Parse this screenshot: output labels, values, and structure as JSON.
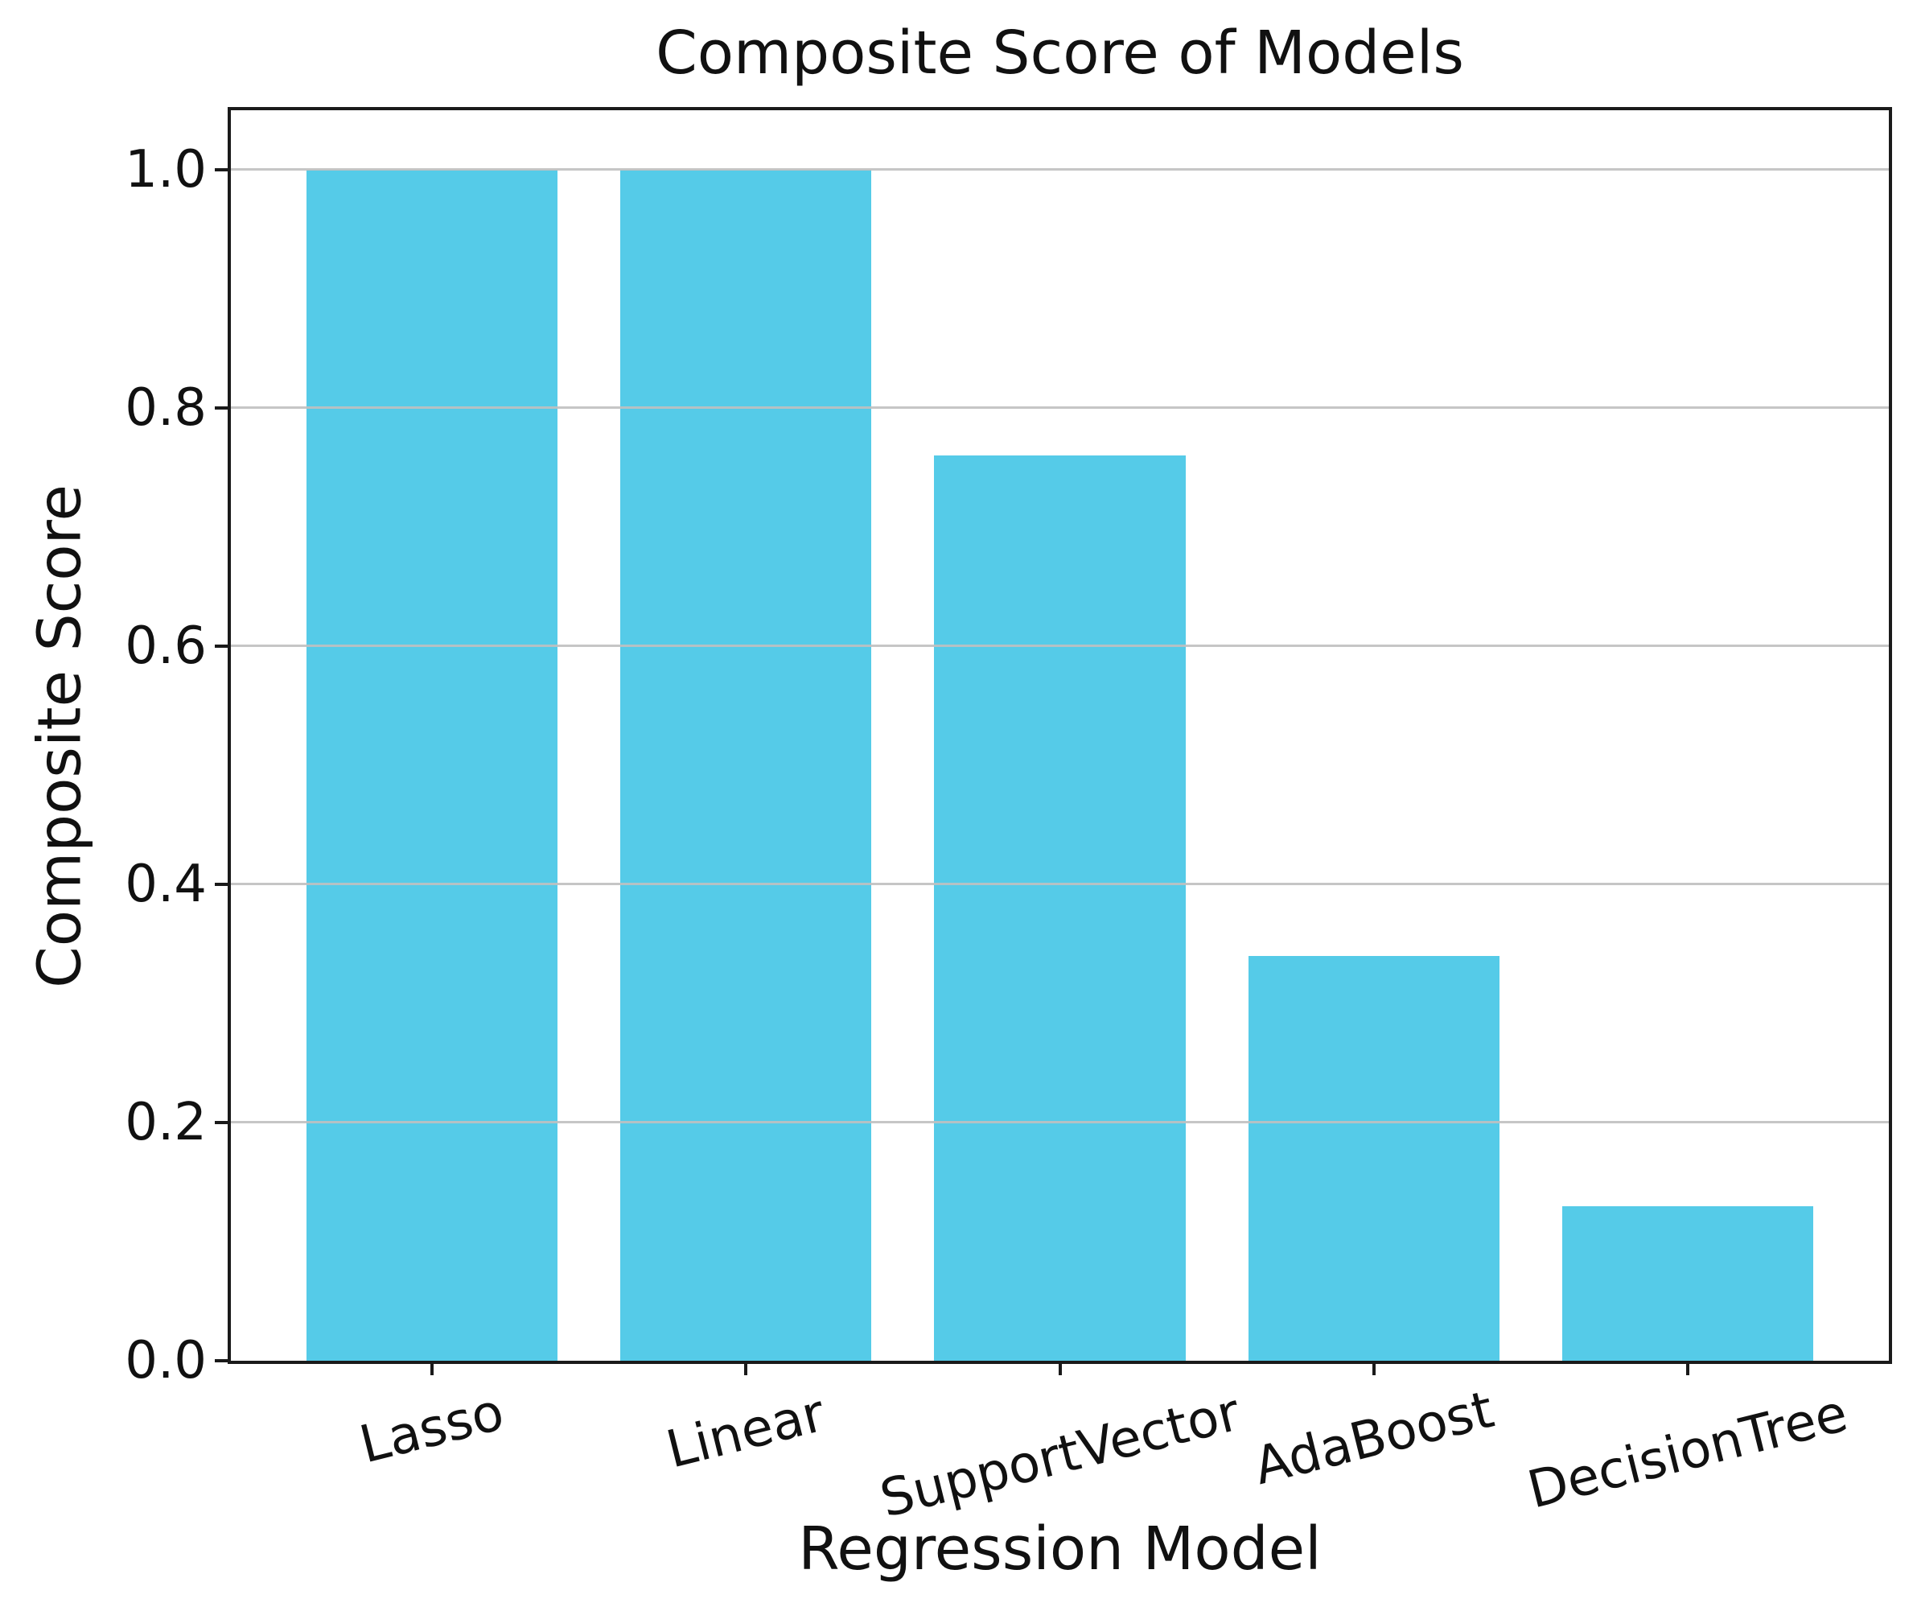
{
  "chart_data": {
    "type": "bar",
    "title": "Composite Score of Models",
    "xlabel": "Regression Model",
    "ylabel": "Composite Score",
    "categories": [
      "Lasso",
      "Linear",
      "SupportVector",
      "AdaBoost",
      "DecisionTree"
    ],
    "values": [
      1.0,
      1.0,
      0.76,
      0.34,
      0.13
    ],
    "ylim": [
      0,
      1.05
    ],
    "yticks": [
      0.0,
      0.2,
      0.4,
      0.6,
      0.8,
      1.0
    ],
    "ytick_labels": [
      "0.0",
      "0.2",
      "0.4",
      "0.6",
      "0.8",
      "1.0"
    ],
    "xtick_rotation_deg": -14,
    "bar_color": "#55cbe8",
    "grid": true,
    "grid_color": "#c0c0c0",
    "axis_color": "#1a1a1a",
    "text_color": "#111111",
    "legend": "none"
  }
}
